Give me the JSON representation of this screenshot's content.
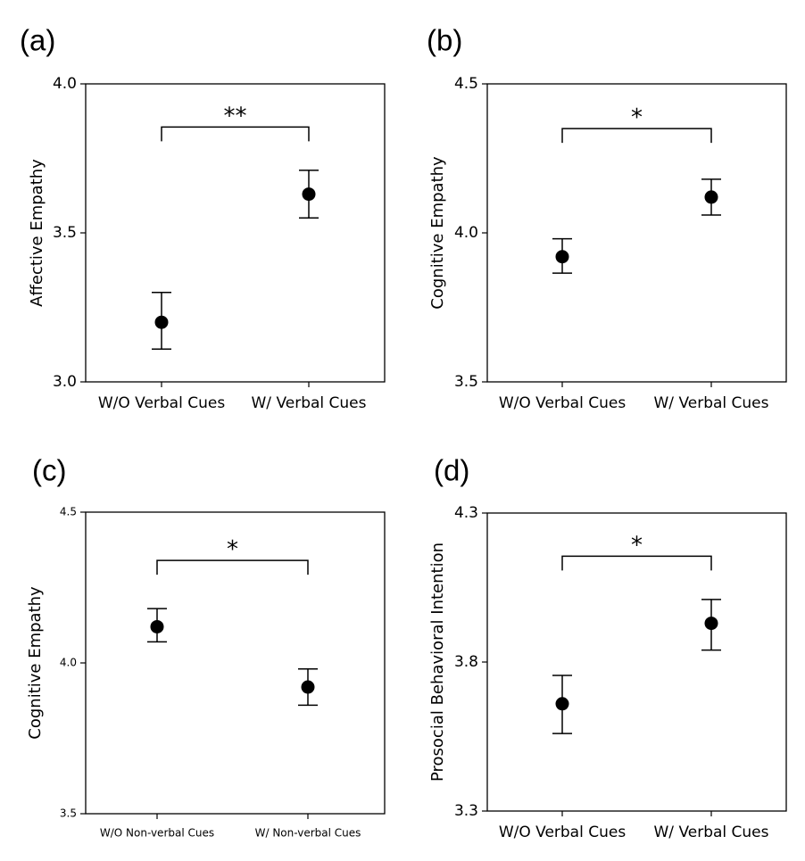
{
  "chart_data": [
    {
      "panel_label": "(a)",
      "type": "scatter",
      "categories": [
        "W/O Verbal Cues",
        "W/ Verbal Cues"
      ],
      "values": [
        3.2,
        3.63
      ],
      "error_low": [
        3.11,
        3.55
      ],
      "error_high": [
        3.3,
        3.71
      ],
      "ylabel": "Affective Empathy",
      "ylim": [
        3.0,
        4.0
      ],
      "yticks": [
        "3.0",
        "3.5",
        "4.0"
      ],
      "ytick_values": [
        3.0,
        3.5,
        4.0
      ],
      "significance": "**",
      "bracket_y": 3.855,
      "grid": false,
      "tick_font": 17
    },
    {
      "panel_label": "(b)",
      "type": "scatter",
      "categories": [
        "W/O Verbal Cues",
        "W/ Verbal Cues"
      ],
      "values": [
        3.92,
        4.12
      ],
      "error_low": [
        3.865,
        4.06
      ],
      "error_high": [
        3.98,
        4.18
      ],
      "ylabel": "Cognitive Empathy",
      "ylim": [
        3.5,
        4.5
      ],
      "yticks": [
        "3.5",
        "4.0",
        "4.5"
      ],
      "ytick_values": [
        3.5,
        4.0,
        4.5
      ],
      "significance": "*",
      "bracket_y": 4.35,
      "grid": false,
      "tick_font": 17
    },
    {
      "panel_label": "(c)",
      "type": "scatter",
      "categories": [
        "W/O Non-verbal Cues",
        "W/ Non-verbal Cues"
      ],
      "values": [
        4.12,
        3.92
      ],
      "error_low": [
        4.07,
        3.86
      ],
      "error_high": [
        4.18,
        3.98
      ],
      "ylabel": "Cognitive Empathy",
      "ylim": [
        3.5,
        4.5
      ],
      "yticks": [
        "3.5",
        "4.0",
        "4.5"
      ],
      "ytick_values": [
        3.5,
        4.0,
        4.5
      ],
      "significance": "*",
      "bracket_y": 4.34,
      "grid": false,
      "tick_font": 12
    },
    {
      "panel_label": "(d)",
      "type": "scatter",
      "categories": [
        "W/O Verbal Cues",
        "W/ Verbal Cues"
      ],
      "values": [
        3.66,
        3.93
      ],
      "error_low": [
        3.56,
        3.84
      ],
      "error_high": [
        3.755,
        4.01
      ],
      "ylabel": "Prosocial Behavioral Intention",
      "ylim": [
        3.3,
        4.3
      ],
      "yticks": [
        "3.3",
        "3.8",
        "4.3"
      ],
      "ytick_values": [
        3.3,
        3.8,
        4.3
      ],
      "significance": "*",
      "bracket_y": 4.155,
      "grid": false,
      "tick_font": 17
    }
  ]
}
